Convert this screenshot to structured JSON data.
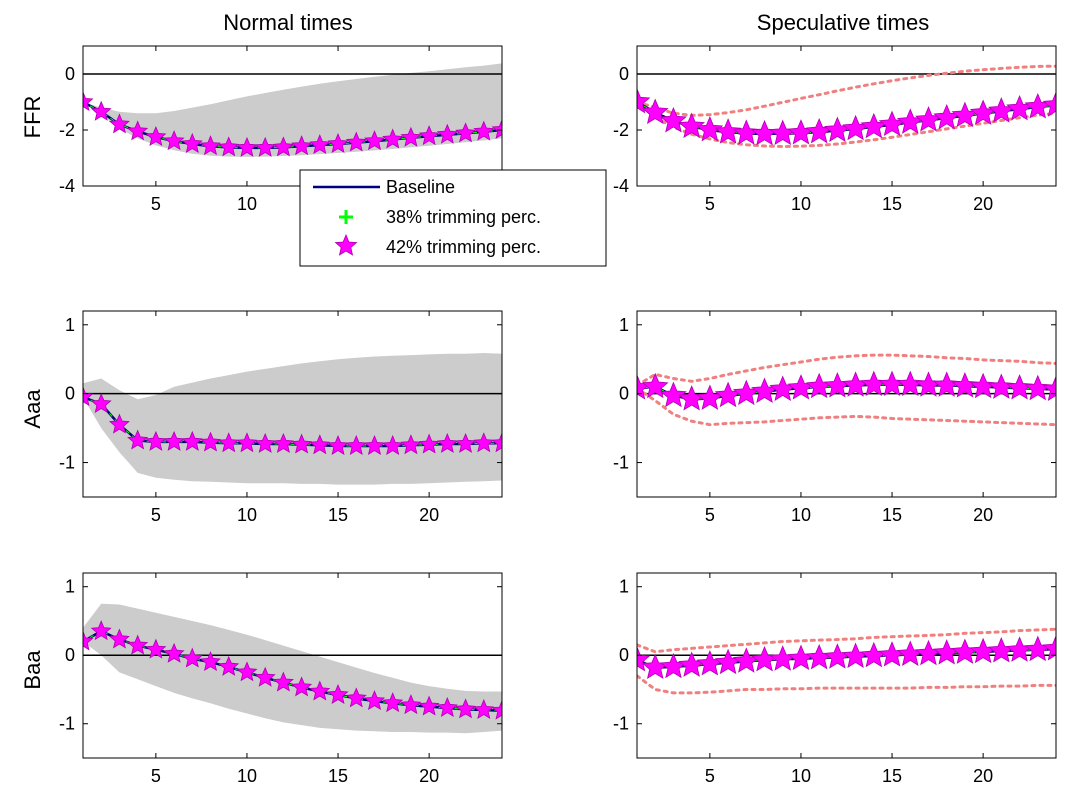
{
  "figure": {
    "column_titles": [
      "Normal times",
      "Speculative times"
    ],
    "row_labels": [
      "FFR",
      "Aaa",
      "Baa"
    ],
    "legend": {
      "placement": "center (overlapping top-left panel)",
      "entries": [
        {
          "label": "Baseline",
          "color": "#00007f",
          "marker": "line"
        },
        {
          "label": "38% trimming perc.",
          "color": "#00ff00",
          "marker": "plus"
        },
        {
          "label": "42% trimming perc.",
          "color": "#ff00ff",
          "marker": "star"
        }
      ]
    },
    "colors": {
      "baseline": "#00007f",
      "band_fill": "#cccccc",
      "band_dotted": "#f08080",
      "spec_median": "#ff0000",
      "trim38": "#00ff00",
      "trim42": "#ff00ff"
    }
  },
  "chart_data": [
    {
      "type": "line",
      "row": 0,
      "col": 0,
      "band": "shaded",
      "xlim": [
        1,
        24
      ],
      "ylim": [
        -4,
        1
      ],
      "yticks": [
        -4,
        -2,
        0
      ],
      "yticklabels": [
        "-4",
        "-2",
        "0"
      ],
      "xticks": [
        5,
        10,
        15,
        20
      ],
      "xticklabels": [
        "5",
        "10",
        "15",
        "20"
      ],
      "x": [
        1,
        2,
        3,
        4,
        5,
        6,
        7,
        8,
        9,
        10,
        11,
        12,
        13,
        14,
        15,
        16,
        17,
        18,
        19,
        20,
        21,
        22,
        23,
        24
      ],
      "median": [
        -1.0,
        -1.35,
        -1.8,
        -2.05,
        -2.25,
        -2.4,
        -2.5,
        -2.58,
        -2.62,
        -2.64,
        -2.64,
        -2.62,
        -2.58,
        -2.54,
        -2.5,
        -2.45,
        -2.4,
        -2.34,
        -2.28,
        -2.22,
        -2.17,
        -2.12,
        -2.06,
        -2.0
      ],
      "lower": [
        -1.0,
        -1.45,
        -1.95,
        -2.3,
        -2.55,
        -2.72,
        -2.85,
        -2.92,
        -2.95,
        -2.96,
        -2.95,
        -2.93,
        -2.9,
        -2.86,
        -2.82,
        -2.78,
        -2.73,
        -2.68,
        -2.62,
        -2.56,
        -2.5,
        -2.44,
        -2.37,
        -2.3
      ],
      "upper": [
        -1.0,
        -1.2,
        -1.35,
        -1.4,
        -1.4,
        -1.32,
        -1.2,
        -1.08,
        -0.94,
        -0.8,
        -0.68,
        -0.56,
        -0.45,
        -0.35,
        -0.26,
        -0.18,
        -0.1,
        -0.03,
        0.04,
        0.1,
        0.17,
        0.24,
        0.3,
        0.38
      ]
    },
    {
      "type": "line",
      "row": 0,
      "col": 1,
      "band": "dotted",
      "xlim": [
        1,
        24
      ],
      "ylim": [
        -4,
        1
      ],
      "yticks": [
        -4,
        -2,
        0
      ],
      "yticklabels": [
        "-4",
        "-2",
        "0"
      ],
      "xticks": [
        5,
        10,
        15,
        20
      ],
      "xticklabels": [
        "5",
        "10",
        "15",
        "20"
      ],
      "x": [
        1,
        2,
        3,
        4,
        5,
        6,
        7,
        8,
        9,
        10,
        11,
        12,
        13,
        14,
        15,
        16,
        17,
        18,
        19,
        20,
        21,
        22,
        23,
        24
      ],
      "median": [
        -1.0,
        -1.38,
        -1.68,
        -1.88,
        -2.0,
        -2.08,
        -2.12,
        -2.14,
        -2.13,
        -2.11,
        -2.07,
        -2.02,
        -1.96,
        -1.89,
        -1.81,
        -1.73,
        -1.65,
        -1.57,
        -1.49,
        -1.41,
        -1.33,
        -1.25,
        -1.18,
        -1.12
      ],
      "lower": [
        -1.0,
        -1.55,
        -1.9,
        -2.15,
        -2.32,
        -2.45,
        -2.53,
        -2.57,
        -2.59,
        -2.58,
        -2.55,
        -2.5,
        -2.43,
        -2.35,
        -2.26,
        -2.16,
        -2.06,
        -1.96,
        -1.86,
        -1.76,
        -1.66,
        -1.56,
        -1.47,
        -1.4
      ],
      "upper": [
        -1.0,
        -1.2,
        -1.4,
        -1.48,
        -1.45,
        -1.38,
        -1.28,
        -1.15,
        -1.01,
        -0.87,
        -0.74,
        -0.6,
        -0.47,
        -0.35,
        -0.24,
        -0.14,
        -0.05,
        0.03,
        0.1,
        0.15,
        0.2,
        0.24,
        0.27,
        0.28
      ]
    },
    {
      "type": "line",
      "row": 1,
      "col": 0,
      "band": "shaded",
      "xlim": [
        1,
        24
      ],
      "ylim": [
        -1.5,
        1.2
      ],
      "yticks": [
        -1,
        0,
        1
      ],
      "yticklabels": [
        "-1",
        "0",
        "1"
      ],
      "xticks": [
        5,
        10,
        15,
        20
      ],
      "xticklabels": [
        "5",
        "10",
        "15",
        "20"
      ],
      "x": [
        1,
        2,
        3,
        4,
        5,
        6,
        7,
        8,
        9,
        10,
        11,
        12,
        13,
        14,
        15,
        16,
        17,
        18,
        19,
        20,
        21,
        22,
        23,
        24
      ],
      "median": [
        -0.05,
        -0.15,
        -0.45,
        -0.68,
        -0.7,
        -0.7,
        -0.7,
        -0.71,
        -0.72,
        -0.72,
        -0.73,
        -0.73,
        -0.74,
        -0.75,
        -0.76,
        -0.76,
        -0.76,
        -0.76,
        -0.75,
        -0.74,
        -0.73,
        -0.73,
        -0.72,
        -0.72
      ],
      "lower": [
        -0.05,
        -0.5,
        -0.85,
        -1.15,
        -1.22,
        -1.25,
        -1.27,
        -1.28,
        -1.29,
        -1.3,
        -1.3,
        -1.3,
        -1.31,
        -1.31,
        -1.32,
        -1.32,
        -1.32,
        -1.31,
        -1.31,
        -1.3,
        -1.29,
        -1.28,
        -1.27,
        -1.26
      ],
      "upper": [
        0.15,
        0.22,
        0.05,
        -0.08,
        -0.02,
        0.1,
        0.16,
        0.22,
        0.27,
        0.32,
        0.36,
        0.4,
        0.44,
        0.47,
        0.5,
        0.52,
        0.54,
        0.55,
        0.56,
        0.57,
        0.58,
        0.58,
        0.59,
        0.58
      ]
    },
    {
      "type": "line",
      "row": 1,
      "col": 1,
      "band": "dotted",
      "xlim": [
        1,
        24
      ],
      "ylim": [
        -1.5,
        1.2
      ],
      "yticks": [
        -1,
        0,
        1
      ],
      "yticklabels": [
        "-1",
        "0",
        "1"
      ],
      "xticks": [
        5,
        10,
        15,
        20
      ],
      "xticklabels": [
        "5",
        "10",
        "15",
        "20"
      ],
      "x": [
        1,
        2,
        3,
        4,
        5,
        6,
        7,
        8,
        9,
        10,
        11,
        12,
        13,
        14,
        15,
        16,
        17,
        18,
        19,
        20,
        21,
        22,
        23,
        24
      ],
      "median": [
        0.08,
        0.1,
        -0.03,
        -0.08,
        -0.07,
        -0.03,
        0.0,
        0.03,
        0.06,
        0.08,
        0.1,
        0.11,
        0.12,
        0.13,
        0.13,
        0.13,
        0.12,
        0.12,
        0.11,
        0.1,
        0.09,
        0.08,
        0.07,
        0.06
      ],
      "lower": [
        0.08,
        -0.1,
        -0.3,
        -0.4,
        -0.45,
        -0.43,
        -0.42,
        -0.41,
        -0.39,
        -0.37,
        -0.35,
        -0.34,
        -0.33,
        -0.34,
        -0.36,
        -0.37,
        -0.38,
        -0.39,
        -0.4,
        -0.41,
        -0.42,
        -0.43,
        -0.44,
        -0.45
      ],
      "upper": [
        0.12,
        0.28,
        0.22,
        0.18,
        0.22,
        0.28,
        0.33,
        0.38,
        0.42,
        0.46,
        0.5,
        0.53,
        0.55,
        0.56,
        0.56,
        0.55,
        0.54,
        0.52,
        0.51,
        0.49,
        0.48,
        0.47,
        0.45,
        0.44
      ]
    },
    {
      "type": "line",
      "row": 2,
      "col": 0,
      "band": "shaded",
      "xlim": [
        1,
        24
      ],
      "ylim": [
        -1.5,
        1.2
      ],
      "yticks": [
        -1,
        0,
        1
      ],
      "yticklabels": [
        "-1",
        "0",
        "1"
      ],
      "xticks": [
        5,
        10,
        15,
        20
      ],
      "xticklabels": [
        "5",
        "10",
        "15",
        "20"
      ],
      "x": [
        1,
        2,
        3,
        4,
        5,
        6,
        7,
        8,
        9,
        10,
        11,
        12,
        13,
        14,
        15,
        16,
        17,
        18,
        19,
        20,
        21,
        22,
        23,
        24
      ],
      "median": [
        0.2,
        0.35,
        0.23,
        0.14,
        0.08,
        0.02,
        -0.05,
        -0.1,
        -0.17,
        -0.25,
        -0.33,
        -0.4,
        -0.47,
        -0.53,
        -0.58,
        -0.63,
        -0.67,
        -0.7,
        -0.73,
        -0.75,
        -0.77,
        -0.79,
        -0.8,
        -0.81
      ],
      "lower": [
        0.2,
        0.0,
        -0.25,
        -0.35,
        -0.45,
        -0.55,
        -0.63,
        -0.7,
        -0.78,
        -0.85,
        -0.92,
        -0.98,
        -1.02,
        -1.06,
        -1.08,
        -1.1,
        -1.11,
        -1.12,
        -1.12,
        -1.13,
        -1.13,
        -1.14,
        -1.12,
        -1.1
      ],
      "upper": [
        0.4,
        0.75,
        0.74,
        0.68,
        0.62,
        0.56,
        0.5,
        0.44,
        0.37,
        0.3,
        0.22,
        0.14,
        0.06,
        -0.02,
        -0.1,
        -0.18,
        -0.26,
        -0.33,
        -0.4,
        -0.45,
        -0.49,
        -0.52,
        -0.53,
        -0.53
      ]
    },
    {
      "type": "line",
      "row": 2,
      "col": 1,
      "band": "dotted",
      "xlim": [
        1,
        24
      ],
      "ylim": [
        -1.5,
        1.2
      ],
      "yticks": [
        -1,
        0,
        1
      ],
      "yticklabels": [
        "-1",
        "0",
        "1"
      ],
      "xticks": [
        5,
        10,
        15,
        20
      ],
      "xticklabels": [
        "5",
        "10",
        "15",
        "20"
      ],
      "x": [
        1,
        2,
        3,
        4,
        5,
        6,
        7,
        8,
        9,
        10,
        11,
        12,
        13,
        14,
        15,
        16,
        17,
        18,
        19,
        20,
        21,
        22,
        23,
        24
      ],
      "median": [
        -0.07,
        -0.18,
        -0.17,
        -0.15,
        -0.13,
        -0.11,
        -0.09,
        -0.07,
        -0.06,
        -0.05,
        -0.04,
        -0.03,
        -0.02,
        -0.01,
        0.0,
        0.01,
        0.02,
        0.03,
        0.04,
        0.05,
        0.06,
        0.07,
        0.08,
        0.09
      ],
      "lower": [
        -0.3,
        -0.5,
        -0.55,
        -0.55,
        -0.54,
        -0.52,
        -0.5,
        -0.5,
        -0.49,
        -0.49,
        -0.48,
        -0.48,
        -0.48,
        -0.48,
        -0.48,
        -0.48,
        -0.47,
        -0.47,
        -0.46,
        -0.46,
        -0.45,
        -0.45,
        -0.44,
        -0.44
      ],
      "upper": [
        0.15,
        0.05,
        0.08,
        0.1,
        0.12,
        0.14,
        0.16,
        0.18,
        0.2,
        0.21,
        0.22,
        0.23,
        0.24,
        0.26,
        0.27,
        0.28,
        0.29,
        0.3,
        0.32,
        0.33,
        0.34,
        0.36,
        0.37,
        0.38
      ]
    }
  ]
}
